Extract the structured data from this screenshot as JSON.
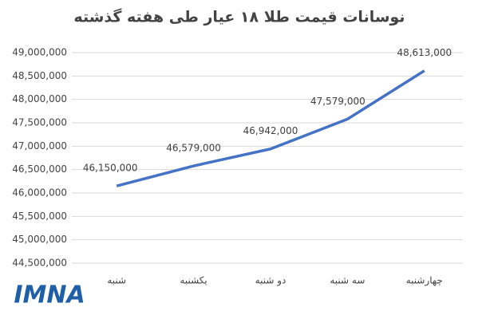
{
  "chart_data": {
    "type": "line",
    "title": "نوسانات قیمت طلا ۱۸ عیار طی هفته گذشته",
    "categories": [
      "شنبه",
      "یکشنبه",
      "دو شنبه",
      "سه شنبه",
      "چهارشنبه"
    ],
    "values": [
      46150000,
      46579000,
      46942000,
      47579000,
      48613000
    ],
    "value_labels": [
      "46,150,000",
      "46,579,000",
      "46,942,000",
      "47,579,000",
      "48,613,000"
    ],
    "color": "#4472c4",
    "ylim": [
      44500000,
      49000000
    ],
    "yticks": [
      {
        "value": 44500000,
        "label": "44,500,000"
      },
      {
        "value": 45000000,
        "label": "45,000,000"
      },
      {
        "value": 45500000,
        "label": "45,500,000"
      },
      {
        "value": 46000000,
        "label": "46,000,000"
      },
      {
        "value": 46500000,
        "label": "46,500,000"
      },
      {
        "value": 47000000,
        "label": "47,000,000"
      },
      {
        "value": 47500000,
        "label": "47,500,000"
      },
      {
        "value": 48000000,
        "label": "48,000,000"
      },
      {
        "value": 48500000,
        "label": "48,500,000"
      },
      {
        "value": 49000000,
        "label": "49,000,000"
      }
    ],
    "grid": true
  },
  "logo": "IMNA"
}
